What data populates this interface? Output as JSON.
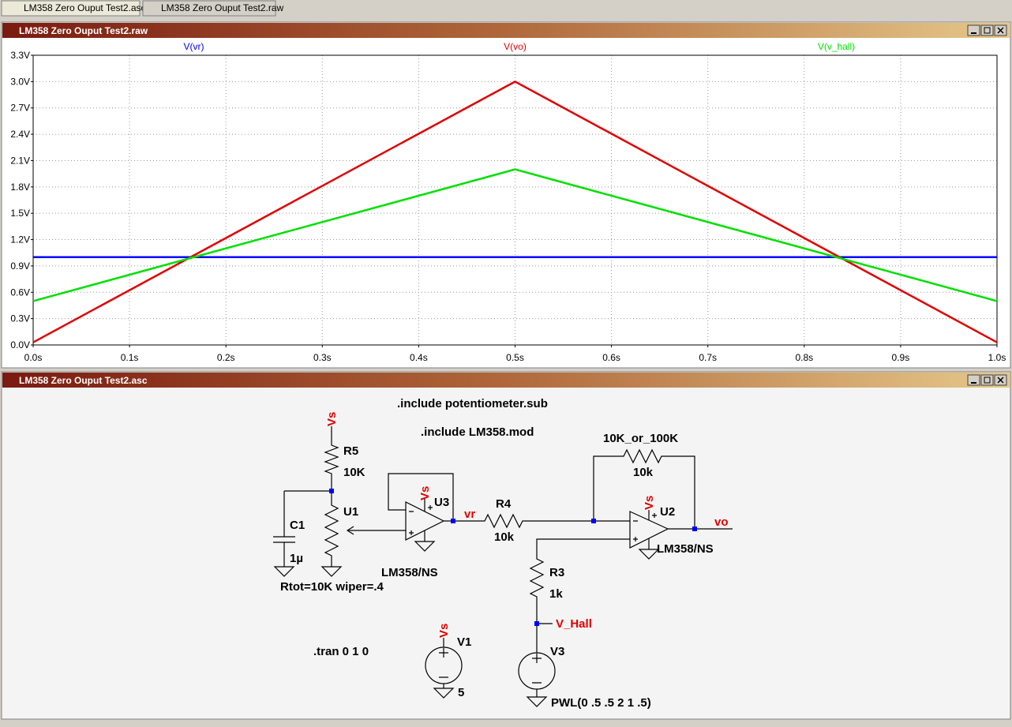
{
  "tabs": [
    "LM358 Zero Ouput Test2.asc",
    "LM358 Zero Ouput Test2.raw"
  ],
  "waveform_window": {
    "title": "LM358 Zero Ouput Test2.raw"
  },
  "chart_data": {
    "type": "line",
    "x": [
      0,
      0.5,
      1.0
    ],
    "series": [
      {
        "name": "V(vr)",
        "color": "#0000ff",
        "values": [
          1.0,
          1.0,
          1.0
        ]
      },
      {
        "name": "V(vo)",
        "color": "#e00000",
        "values": [
          0.03,
          3.0,
          0.03
        ]
      },
      {
        "name": "V(v_hall)",
        "color": "#00e000",
        "values": [
          0.5,
          2.0,
          0.5
        ]
      }
    ],
    "xlim": [
      0,
      1.0
    ],
    "ylim": [
      0,
      3.3
    ],
    "xticks": [
      {
        "value": 0,
        "label": "0.0s"
      },
      {
        "value": 0.1,
        "label": "0.1s"
      },
      {
        "value": 0.2,
        "label": "0.2s"
      },
      {
        "value": 0.3,
        "label": "0.3s"
      },
      {
        "value": 0.4,
        "label": "0.4s"
      },
      {
        "value": 0.5,
        "label": "0.5s"
      },
      {
        "value": 0.6,
        "label": "0.6s"
      },
      {
        "value": 0.7,
        "label": "0.7s"
      },
      {
        "value": 0.8,
        "label": "0.8s"
      },
      {
        "value": 0.9,
        "label": "0.9s"
      },
      {
        "value": 1.0,
        "label": "1.0s"
      }
    ],
    "yticks": [
      {
        "value": 0,
        "label": "0.0V"
      },
      {
        "value": 0.3,
        "label": "0.3V"
      },
      {
        "value": 0.6,
        "label": "0.6V"
      },
      {
        "value": 0.9,
        "label": "0.9V"
      },
      {
        "value": 1.2,
        "label": "1.2V"
      },
      {
        "value": 1.5,
        "label": "1.5V"
      },
      {
        "value": 1.8,
        "label": "1.8V"
      },
      {
        "value": 2.1,
        "label": "2.1V"
      },
      {
        "value": 2.4,
        "label": "2.4V"
      },
      {
        "value": 2.7,
        "label": "2.7V"
      },
      {
        "value": 3.0,
        "label": "3.0V"
      },
      {
        "value": 3.3,
        "label": "3.3V"
      }
    ],
    "grid": true
  },
  "schematic_window": {
    "title": "LM358 Zero Ouput Test2.asc",
    "labels": [
      ".include potentiometer.sub",
      ".include LM358.mod",
      "Vs",
      "R5",
      "10K",
      "U1",
      "C1",
      "1µ",
      "Rtot=10K wiper=.4",
      "Vs",
      "U3",
      "LM358/NS",
      "vr",
      "R4",
      "10k",
      "10K_or_100K",
      "10k",
      "Vs",
      "U2",
      "vo",
      "LM358/NS",
      "R3",
      "1k",
      "V_Hall",
      "V3",
      "PWL(0 .5 .5 2 1 .5)",
      ".tran 0 1 0",
      "Vs",
      "V1",
      "5"
    ]
  }
}
